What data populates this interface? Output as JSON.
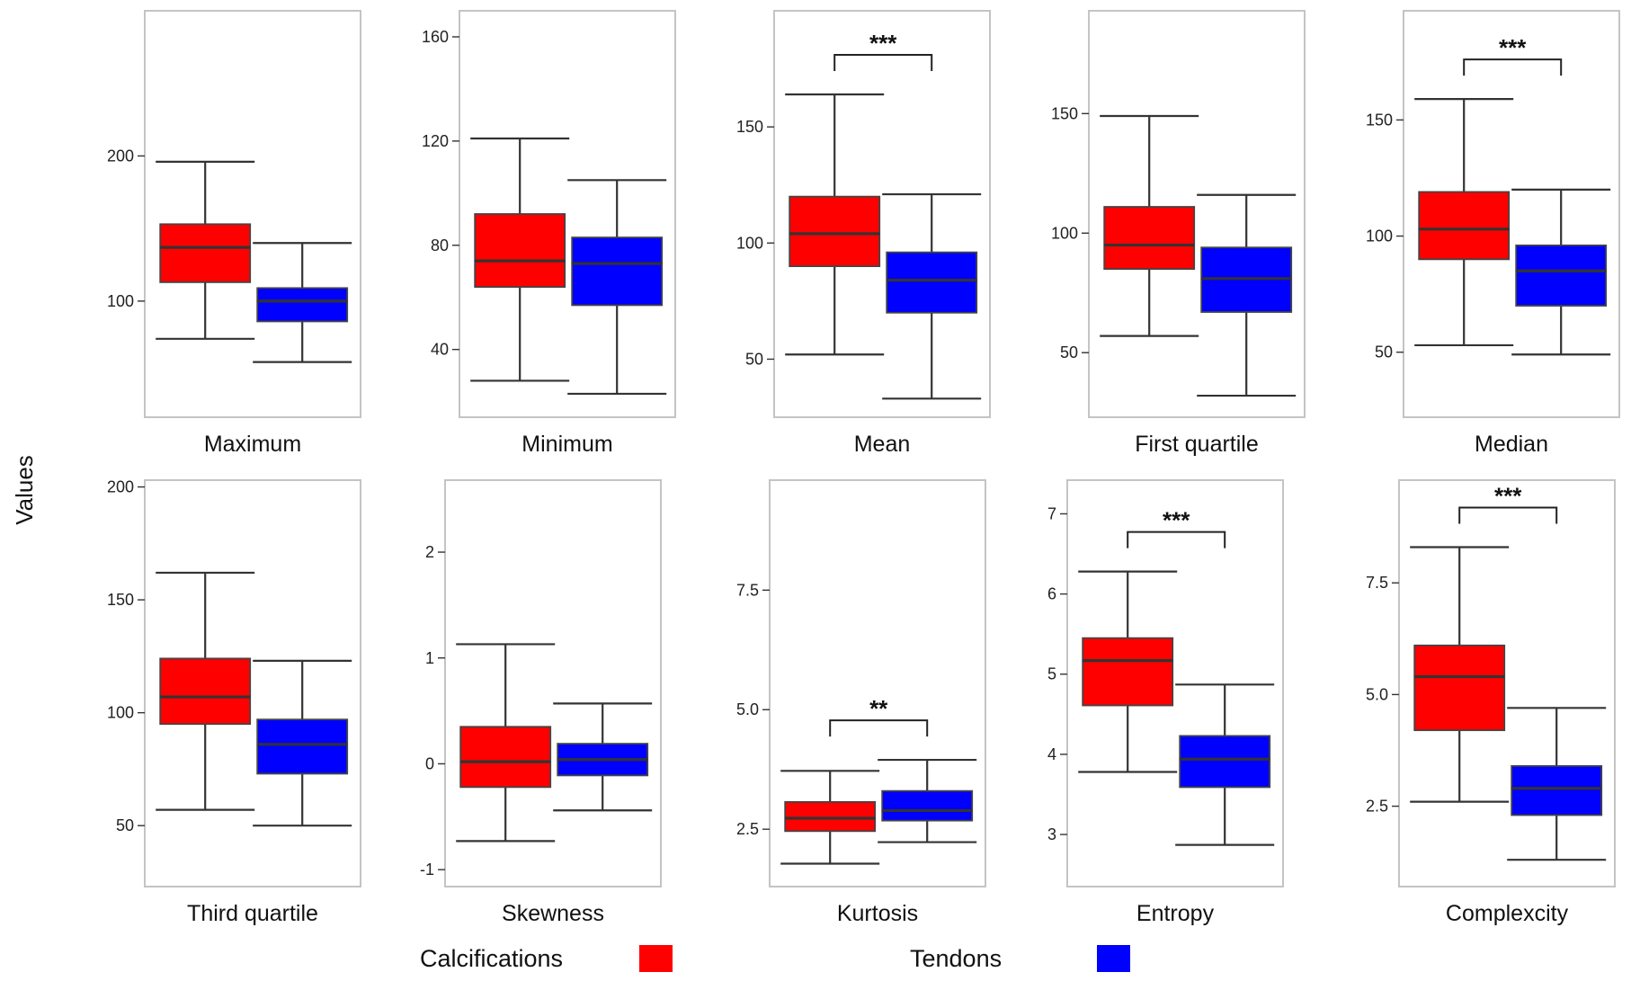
{
  "legend": {
    "items": [
      {
        "label": "Calcifications",
        "color": "#ff0000"
      },
      {
        "label": "Tendons",
        "color": "#0000ff"
      }
    ]
  },
  "y_axis_label": "Values",
  "chart_data": [
    {
      "type": "box",
      "title": "Maximum",
      "ylim": [
        20,
        300
      ],
      "ticks": [
        100,
        200
      ],
      "series": [
        {
          "name": "Calcifications",
          "color": "#ff0000",
          "whisker_low": 74,
          "q1": 113,
          "median": 137,
          "q3": 153,
          "whisker_high": 196
        },
        {
          "name": "Tendons",
          "color": "#0000ff",
          "whisker_low": 58,
          "q1": 86,
          "median": 100,
          "q3": 109,
          "whisker_high": 140
        }
      ],
      "significance": ""
    },
    {
      "type": "box",
      "title": "Minimum",
      "ylim": [
        14,
        170
      ],
      "ticks": [
        40,
        80,
        120,
        160
      ],
      "series": [
        {
          "name": "Calcifications",
          "color": "#ff0000",
          "whisker_low": 28,
          "q1": 64,
          "median": 74,
          "q3": 92,
          "whisker_high": 121
        },
        {
          "name": "Tendons",
          "color": "#0000ff",
          "whisker_low": 23,
          "q1": 57,
          "median": 73,
          "q3": 83,
          "whisker_high": 105
        }
      ],
      "significance": ""
    },
    {
      "type": "box",
      "title": "Mean",
      "ylim": [
        25,
        200
      ],
      "ticks": [
        50,
        100,
        150
      ],
      "series": [
        {
          "name": "Calcifications",
          "color": "#ff0000",
          "whisker_low": 52,
          "q1": 90,
          "median": 104,
          "q3": 120,
          "whisker_high": 164
        },
        {
          "name": "Tendons",
          "color": "#0000ff",
          "whisker_low": 33,
          "q1": 70,
          "median": 84,
          "q3": 96,
          "whisker_high": 121
        }
      ],
      "significance": "***"
    },
    {
      "type": "box",
      "title": "First quartile",
      "ylim": [
        23,
        193
      ],
      "ticks": [
        50,
        100,
        150
      ],
      "series": [
        {
          "name": "Calcifications",
          "color": "#ff0000",
          "whisker_low": 57,
          "q1": 85,
          "median": 95,
          "q3": 111,
          "whisker_high": 149
        },
        {
          "name": "Tendons",
          "color": "#0000ff",
          "whisker_low": 32,
          "q1": 67,
          "median": 81,
          "q3": 94,
          "whisker_high": 116
        }
      ],
      "significance": ""
    },
    {
      "type": "box",
      "title": "Median",
      "ylim": [
        22,
        197
      ],
      "ticks": [
        50,
        100,
        150
      ],
      "series": [
        {
          "name": "Calcifications",
          "color": "#ff0000",
          "whisker_low": 53,
          "q1": 90,
          "median": 103,
          "q3": 119,
          "whisker_high": 159
        },
        {
          "name": "Tendons",
          "color": "#0000ff",
          "whisker_low": 49,
          "q1": 70,
          "median": 85,
          "q3": 96,
          "whisker_high": 120
        }
      ],
      "significance": "***"
    },
    {
      "type": "box",
      "title": "Third quartile",
      "ylim": [
        23,
        203
      ],
      "ticks": [
        50,
        100,
        150,
        200
      ],
      "series": [
        {
          "name": "Calcifications",
          "color": "#ff0000",
          "whisker_low": 57,
          "q1": 95,
          "median": 107,
          "q3": 124,
          "whisker_high": 162
        },
        {
          "name": "Tendons",
          "color": "#0000ff",
          "whisker_low": 50,
          "q1": 73,
          "median": 86,
          "q3": 97,
          "whisker_high": 123
        }
      ],
      "significance": ""
    },
    {
      "type": "box",
      "title": "Skewness",
      "ylim": [
        -1.16,
        2.68
      ],
      "ticks": [
        -1,
        0,
        1,
        2
      ],
      "series": [
        {
          "name": "Calcifications",
          "color": "#ff0000",
          "whisker_low": -0.73,
          "q1": -0.22,
          "median": 0.02,
          "q3": 0.35,
          "whisker_high": 1.13
        },
        {
          "name": "Tendons",
          "color": "#0000ff",
          "whisker_low": -0.44,
          "q1": -0.11,
          "median": 0.04,
          "q3": 0.19,
          "whisker_high": 0.57
        }
      ],
      "significance": ""
    },
    {
      "type": "box",
      "title": "Kurtosis",
      "ylim": [
        1.3,
        9.8
      ],
      "ticks": [
        2.5,
        5.0,
        7.5
      ],
      "series": [
        {
          "name": "Calcifications",
          "color": "#ff0000",
          "whisker_low": 1.78,
          "q1": 2.46,
          "median": 2.73,
          "q3": 3.07,
          "whisker_high": 3.72
        },
        {
          "name": "Tendons",
          "color": "#0000ff",
          "whisker_low": 2.23,
          "q1": 2.68,
          "median": 2.89,
          "q3": 3.3,
          "whisker_high": 3.95
        }
      ],
      "significance": "**"
    },
    {
      "type": "box",
      "title": "Entropy",
      "ylim": [
        2.35,
        7.42
      ],
      "ticks": [
        3,
        4,
        5,
        6,
        7
      ],
      "series": [
        {
          "name": "Calcifications",
          "color": "#ff0000",
          "whisker_low": 3.78,
          "q1": 4.61,
          "median": 5.17,
          "q3": 5.45,
          "whisker_high": 6.28
        },
        {
          "name": "Tendons",
          "color": "#0000ff",
          "whisker_low": 2.87,
          "q1": 3.59,
          "median": 3.94,
          "q3": 4.23,
          "whisker_high": 4.87
        }
      ],
      "significance": "***"
    },
    {
      "type": "box",
      "title": "Complexcity",
      "ylim": [
        0.7,
        9.8
      ],
      "ticks": [
        2.5,
        5.0,
        7.5
      ],
      "series": [
        {
          "name": "Calcifications",
          "color": "#ff0000",
          "whisker_low": 2.6,
          "q1": 4.2,
          "median": 5.4,
          "q3": 6.1,
          "whisker_high": 8.3
        },
        {
          "name": "Tendons",
          "color": "#0000ff",
          "whisker_low": 1.3,
          "q1": 2.3,
          "median": 2.9,
          "q3": 3.4,
          "whisker_high": 4.7
        }
      ],
      "significance": "***"
    }
  ]
}
